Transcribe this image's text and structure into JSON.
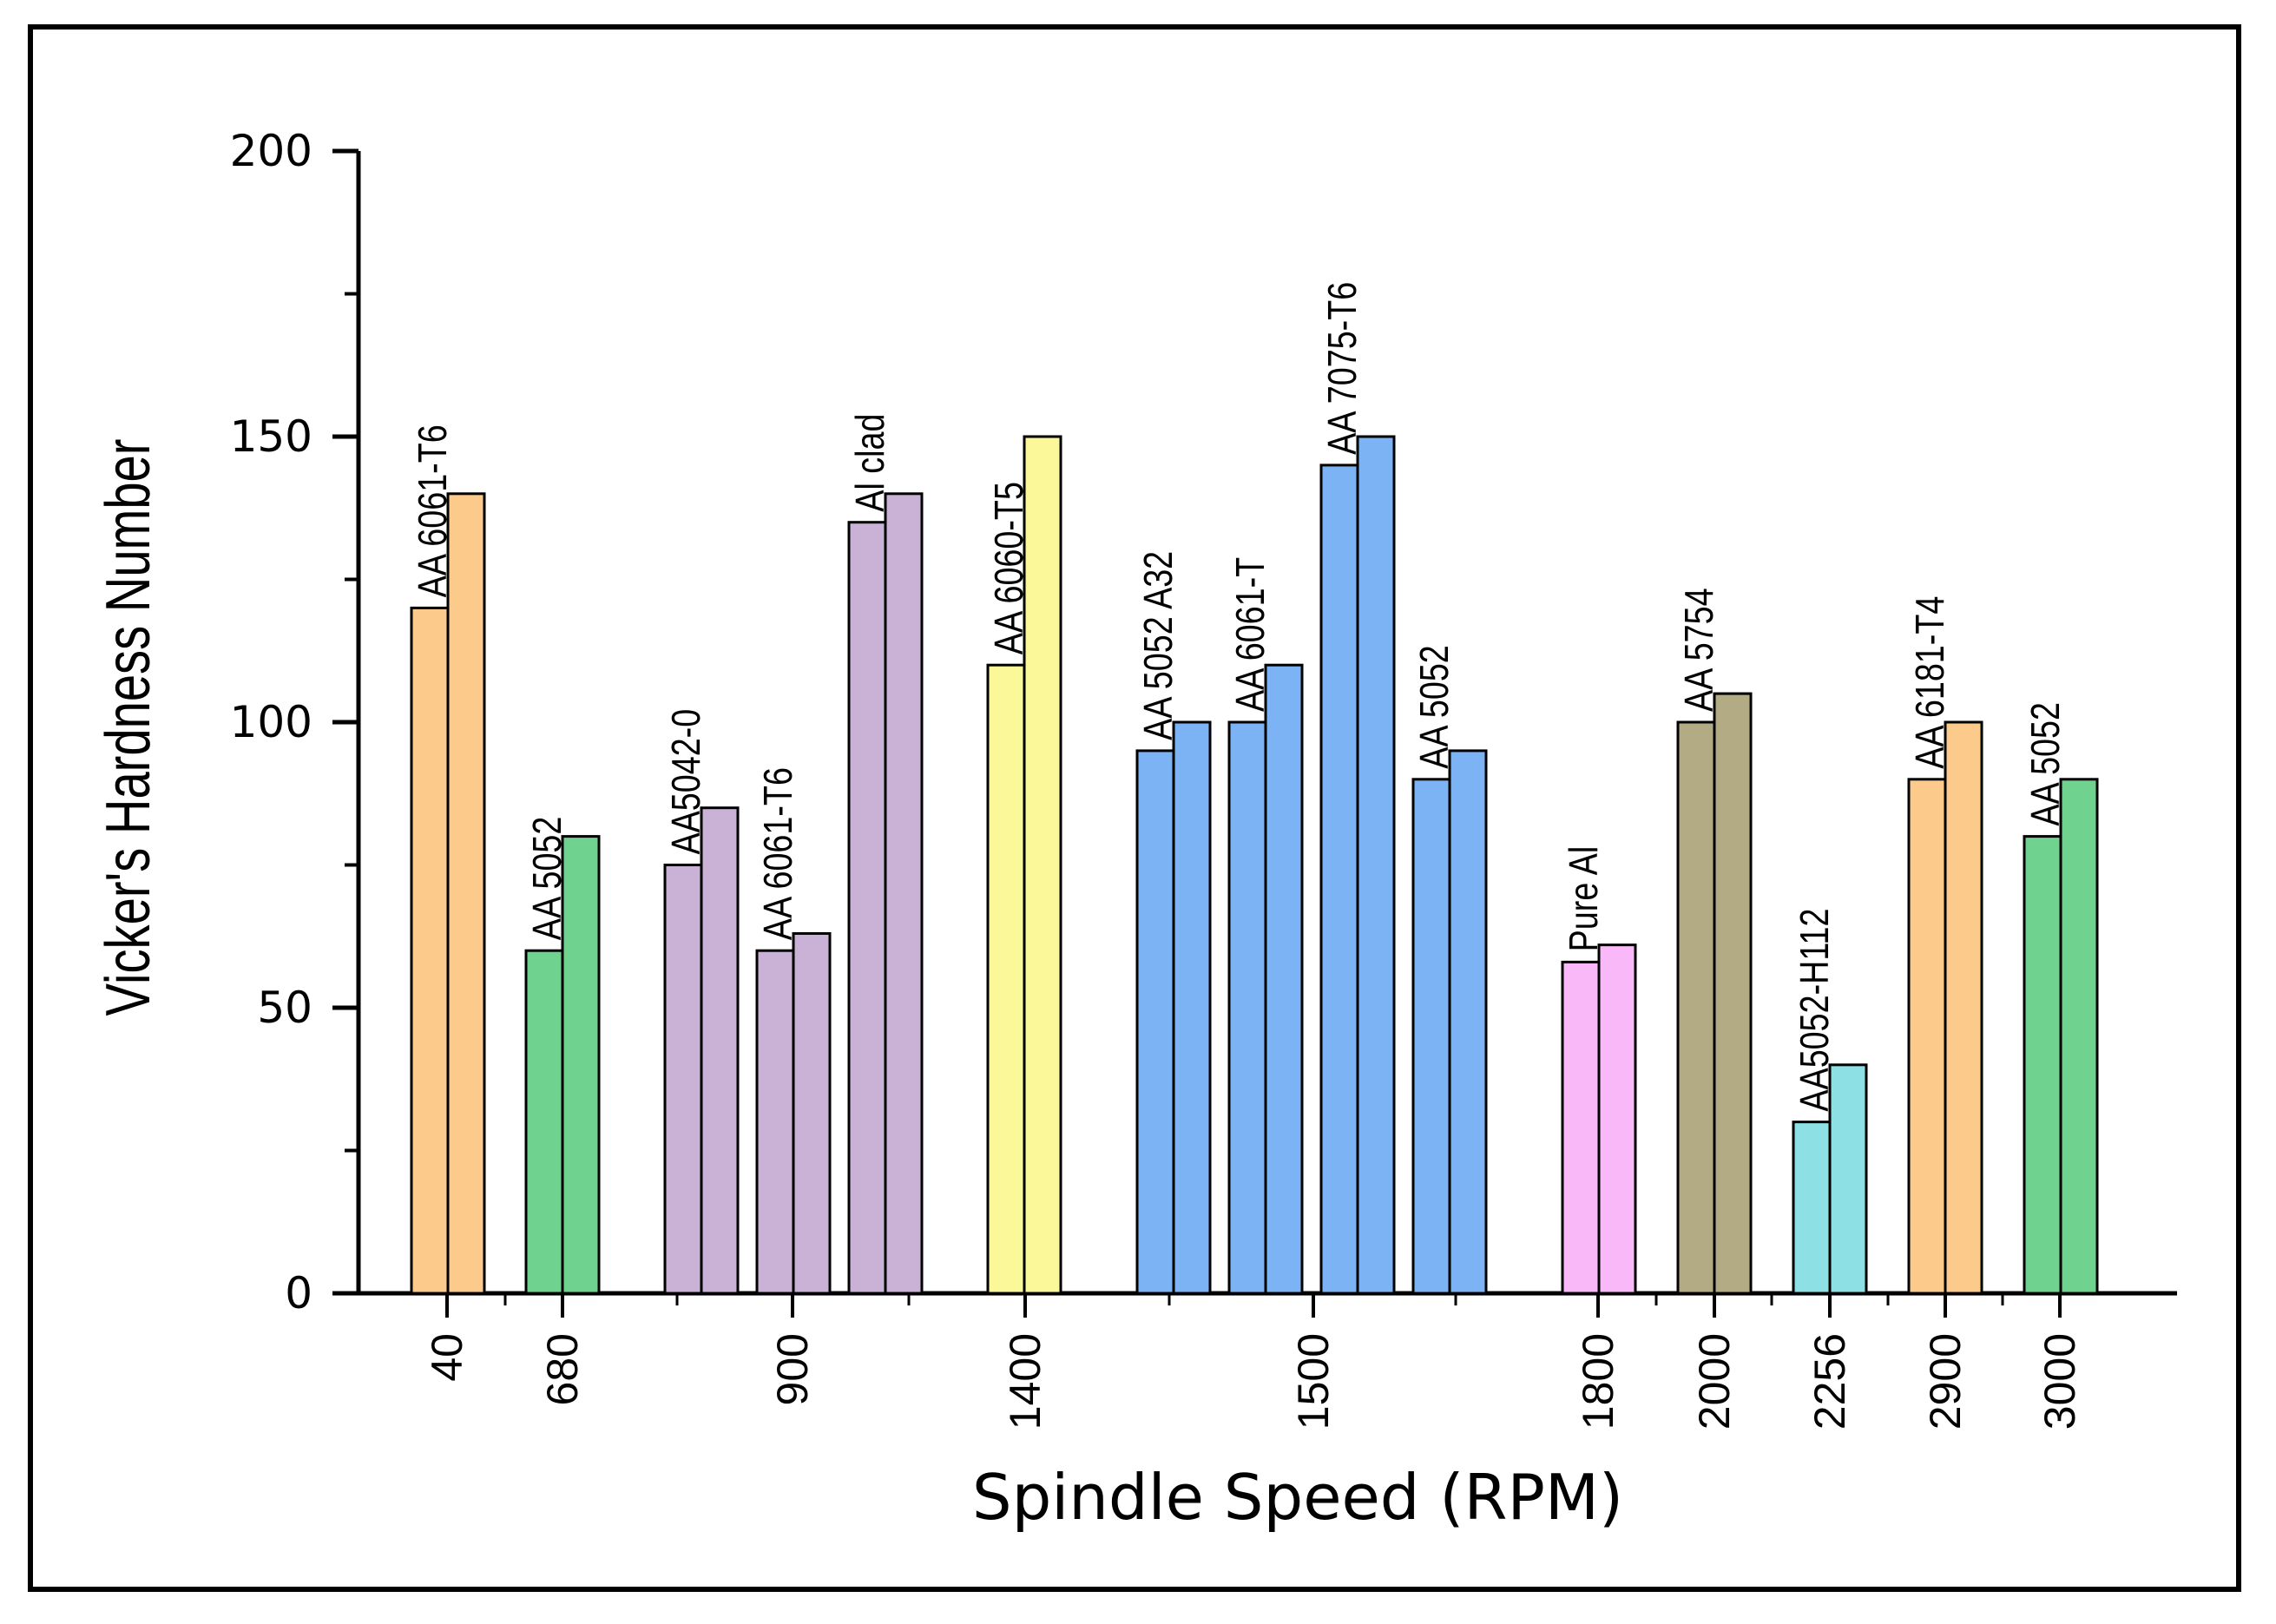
{
  "chart_data": {
    "type": "bar",
    "title": "",
    "xlabel": "Spindle Speed (RPM)",
    "ylabel": "Vicker's Hardness Number",
    "ylim": [
      0,
      200
    ],
    "yticks": [
      0,
      50,
      100,
      150,
      200
    ],
    "grid": false,
    "categories": [
      "40",
      "680",
      "900",
      "1400",
      "1500",
      "1800",
      "2000",
      "2256",
      "2900",
      "3000"
    ],
    "groups": [
      {
        "category": "40",
        "material": "AA 6061-T6",
        "values": [
          120,
          140
        ],
        "color": "#fccb8c"
      },
      {
        "category": "680",
        "material": "AA 5052",
        "values": [
          60,
          80
        ],
        "color": "#6fd38f"
      },
      {
        "category": "900",
        "material": "AA5042-0",
        "values": [
          75,
          85
        ],
        "color": "#c9b2d6"
      },
      {
        "category": "900",
        "material": "AA 6061-T6",
        "values": [
          60,
          63
        ],
        "color": "#c9b2d6"
      },
      {
        "category": "900",
        "material": "Al clad",
        "values": [
          135,
          140
        ],
        "color": "#c9b2d6"
      },
      {
        "category": "1400",
        "material": "AA 6060-T5",
        "values": [
          110,
          150
        ],
        "color": "#fbf89a"
      },
      {
        "category": "1500",
        "material": "AA 5052 A32",
        "values": [
          95,
          100
        ],
        "color": "#7cb3f4"
      },
      {
        "category": "1500",
        "material": "AA 6061-T",
        "values": [
          100,
          110
        ],
        "color": "#7cb3f4"
      },
      {
        "category": "1500",
        "material": "AA 7075-T6",
        "values": [
          145,
          150
        ],
        "color": "#7cb3f4"
      },
      {
        "category": "1500",
        "material": "AA 5052",
        "values": [
          90,
          95
        ],
        "color": "#7cb3f4"
      },
      {
        "category": "1800",
        "material": "Pure Al",
        "values": [
          58,
          61
        ],
        "color": "#f9b8f8"
      },
      {
        "category": "2000",
        "material": "AA 5754",
        "values": [
          100,
          105
        ],
        "color": "#b3ab83"
      },
      {
        "category": "2256",
        "material": "AA5052-H112",
        "values": [
          30,
          40
        ],
        "color": "#8de0e3"
      },
      {
        "category": "2900",
        "material": "AA 6181-T4",
        "values": [
          90,
          100
        ],
        "color": "#fccb8c"
      },
      {
        "category": "3000",
        "material": "AA 5052",
        "values": [
          80,
          90
        ],
        "color": "#6fd38f"
      }
    ]
  }
}
